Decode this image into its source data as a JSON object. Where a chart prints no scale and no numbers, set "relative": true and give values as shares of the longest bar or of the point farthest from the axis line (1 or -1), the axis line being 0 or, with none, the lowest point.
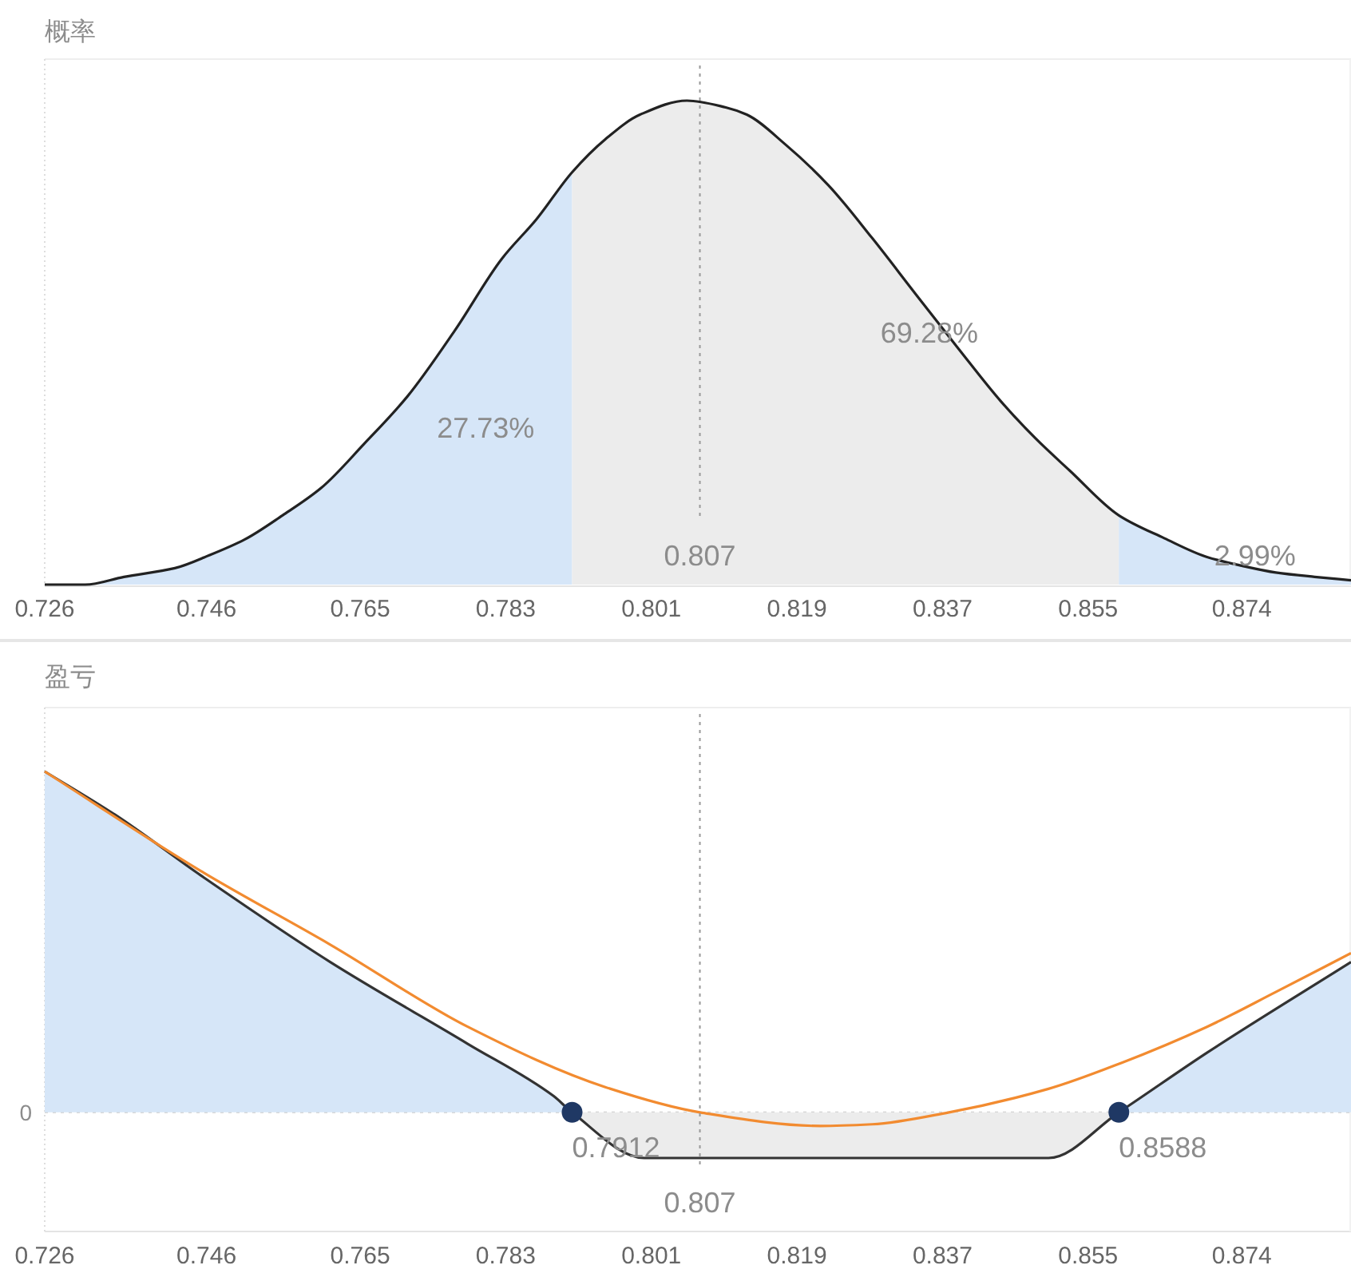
{
  "chart_data": [
    {
      "type": "line",
      "title": "概率",
      "relative": true,
      "xlim": [
        0.726,
        0.8875
      ],
      "xticks": [
        0.726,
        0.746,
        0.765,
        0.783,
        0.801,
        0.819,
        0.837,
        0.855,
        0.874
      ],
      "series": [
        {
          "type": "area",
          "color": "#d6e6f8",
          "x": [
            0.726,
            0.731,
            0.7358,
            0.7421,
            0.7464,
            0.7507,
            0.7554,
            0.7602,
            0.7655,
            0.7708,
            0.7767,
            0.7825,
            0.7868,
            0.7912
          ],
          "values": [
            0,
            0,
            0.016,
            0.034,
            0.061,
            0.093,
            0.143,
            0.2,
            0.291,
            0.388,
            0.525,
            0.673,
            0.755,
            0.852
          ]
        },
        {
          "type": "area",
          "color": "#ececec",
          "x": [
            0.7912,
            0.7953,
            0.7996,
            0.8054,
            0.8102,
            0.8128,
            0.8176,
            0.8229,
            0.8283,
            0.8336,
            0.8389,
            0.8442,
            0.8485,
            0.8527,
            0.8588
          ],
          "values": [
            0.852,
            0.92,
            0.971,
            1,
            0.986,
            0.971,
            0.909,
            0.825,
            0.716,
            0.602,
            0.489,
            0.379,
            0.302,
            0.236,
            0.143
          ]
        },
        {
          "type": "area",
          "color": "#d6e6f8",
          "x": [
            0.8588,
            0.8644,
            0.8697,
            0.874,
            0.8782,
            0.883,
            0.8875
          ],
          "values": [
            0.143,
            0.096,
            0.057,
            0.039,
            0.025,
            0.016,
            0.009
          ]
        },
        {
          "color": "#222222",
          "x": [
            0.726,
            0.731,
            0.7358,
            0.7421,
            0.7464,
            0.7507,
            0.7554,
            0.7602,
            0.7655,
            0.7708,
            0.7767,
            0.7825,
            0.7868,
            0.7912,
            0.7953,
            0.7996,
            0.8054,
            0.8102,
            0.8128,
            0.8176,
            0.8229,
            0.8283,
            0.8336,
            0.8389,
            0.8442,
            0.8485,
            0.8527,
            0.8588,
            0.8644,
            0.8697,
            0.874,
            0.8782,
            0.883,
            0.8875
          ],
          "values": [
            0,
            0,
            0.016,
            0.034,
            0.061,
            0.093,
            0.143,
            0.2,
            0.291,
            0.388,
            0.525,
            0.673,
            0.755,
            0.852,
            0.92,
            0.971,
            1,
            0.986,
            0.971,
            0.909,
            0.825,
            0.716,
            0.602,
            0.489,
            0.379,
            0.302,
            0.236,
            0.143,
            0.096,
            0.057,
            0.039,
            0.025,
            0.016,
            0.009
          ]
        }
      ],
      "ref_lines": [
        {
          "axis": "x",
          "value": 0.807,
          "label": "0.807",
          "color": "#999999",
          "line_style": "dotted"
        }
      ],
      "annotations": [
        "27.73%",
        "69.28%",
        "2.99%"
      ]
    },
    {
      "type": "line",
      "title": "盈亏",
      "relative": true,
      "xlim": [
        0.726,
        0.8875
      ],
      "xticks": [
        0.726,
        0.746,
        0.765,
        0.783,
        0.801,
        0.819,
        0.837,
        0.855,
        0.874
      ],
      "series": [
        {
          "type": "area",
          "color": "#d6e6f8",
          "x": [
            0.726,
            0.7347,
            0.7453,
            0.7613,
            0.7783,
            0.7889,
            0.7912
          ],
          "values": [
            1,
            0.873,
            0.695,
            0.441,
            0.201,
            0.048,
            0
          ]
        },
        {
          "type": "area",
          "color": "#ececec",
          "x": [
            0.7912,
            0.8001,
            0.8501,
            0.8588
          ],
          "values": [
            0,
            -0.134,
            -0.134,
            0
          ]
        },
        {
          "type": "area",
          "color": "#d6e6f8",
          "x": [
            0.8588,
            0.8697,
            0.8875
          ],
          "values": [
            0,
            0.175,
            0.441
          ]
        },
        {
          "color": "#333333",
          "x": [
            0.726,
            0.7347,
            0.7453,
            0.7613,
            0.7783,
            0.7889,
            0.7912,
            0.8001,
            0.8501,
            0.8588,
            0.8697,
            0.8875
          ],
          "values": [
            1,
            0.873,
            0.695,
            0.441,
            0.201,
            0.048,
            0,
            -0.134,
            -0.134,
            0,
            0.175,
            0.441
          ]
        },
        {
          "color": "#f28b30",
          "x": [
            0.726,
            0.7453,
            0.7613,
            0.7783,
            0.7953,
            0.807,
            0.8219,
            0.8283,
            0.8378,
            0.8501,
            0.8591,
            0.8697,
            0.8782,
            0.8875
          ],
          "values": [
            1,
            0.708,
            0.492,
            0.251,
            0.074,
            0,
            -0.04,
            -0.035,
            0,
            0.069,
            0.145,
            0.251,
            0.353,
            0.467
          ]
        },
        {
          "type": "scatter",
          "color": "#1f3864",
          "marker": "circle",
          "x": [
            0.7912,
            0.8588
          ],
          "values": [
            0,
            0
          ]
        }
      ],
      "ref_lines": [
        {
          "axis": "x",
          "value": 0.807,
          "label": "0.807",
          "color": "#999999",
          "line_style": "dotted"
        },
        {
          "axis": "y",
          "value": 0,
          "label": "0",
          "color": "#cccccc",
          "line_style": "dotted"
        }
      ],
      "annotations": [
        {
          "text": "0.7912",
          "x": 0.7912,
          "y": 0
        },
        {
          "text": "0.8588",
          "x": 0.8588,
          "y": 0
        }
      ]
    }
  ]
}
